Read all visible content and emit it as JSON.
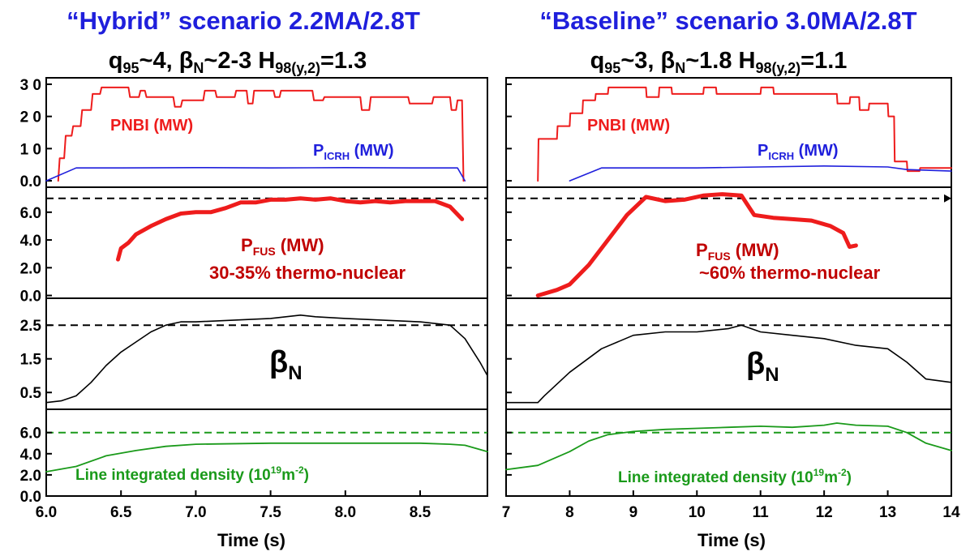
{
  "titles": {
    "left_line1": "“Hybrid” scenario 2.2MA/2.8T",
    "left_line2": "q95~4, βN~2-3 H98(y,2)=1.3",
    "right_line1": "“Baseline” scenario 3.0MA/2.8T",
    "right_line2": "q95~3, βN~1.8 H98(y,2)=1.1"
  },
  "colors": {
    "title_blue": "#1f1fdc",
    "pnbi_red": "#ee1c1c",
    "picrh_blue": "#1f1fdc",
    "pfus_red": "#ee1c1c",
    "pfus_text": "#c00000",
    "beta_black": "#000000",
    "density_green": "#1a9a1a"
  },
  "chart_data": [
    {
      "type": "line",
      "panel": "left",
      "xlabel": "Time (s)",
      "xlim": [
        6.0,
        8.95
      ],
      "xticks": [
        "6.0",
        "6.5",
        "7.0",
        "7.5",
        "8.0",
        "8.5"
      ],
      "grid": false,
      "subplots": [
        {
          "name": "heating",
          "ylim": [
            -2,
            32
          ],
          "yticks": [
            "3 0",
            "2 0",
            "1 0",
            "0.0"
          ],
          "annotations": [
            "PNBI (MW)",
            "PICRH (MW)"
          ],
          "series": [
            {
              "name": "PNBI (MW)",
              "color": "#ee1c1c",
              "x": [
                6.08,
                6.09,
                6.12,
                6.13,
                6.17,
                6.18,
                6.23,
                6.24,
                6.3,
                6.31,
                6.36,
                6.37,
                6.55,
                6.56,
                6.62,
                6.63,
                6.66,
                6.67,
                6.85,
                6.86,
                6.9,
                6.91,
                7.05,
                7.06,
                7.13,
                7.14,
                7.26,
                7.27,
                7.34,
                7.35,
                7.38,
                7.39,
                7.52,
                7.53,
                7.56,
                7.57,
                7.78,
                7.79,
                7.85,
                7.86,
                8.1,
                8.11,
                8.16,
                8.17,
                8.42,
                8.43,
                8.58,
                8.59,
                8.7,
                8.71,
                8.74,
                8.75,
                8.78,
                8.79
              ],
              "y": [
                0,
                7,
                7,
                14,
                14,
                17,
                17,
                22,
                22,
                27,
                27,
                29,
                29,
                26,
                26,
                28,
                28,
                26,
                26,
                23,
                23,
                25,
                25,
                28,
                28,
                26,
                26,
                28,
                28,
                24,
                24,
                28,
                28,
                26,
                26,
                28,
                28,
                25,
                25,
                26,
                26,
                22,
                22,
                26,
                26,
                24,
                24,
                26,
                26,
                22,
                22,
                25,
                25,
                0
              ]
            },
            {
              "name": "PICRH (MW)",
              "color": "#1f1fdc",
              "x": [
                6.0,
                6.2,
                6.5,
                7.0,
                7.5,
                8.0,
                8.5,
                8.75,
                8.8
              ],
              "y": [
                0,
                4,
                4,
                4.1,
                4,
                4.1,
                4,
                4,
                0
              ]
            }
          ]
        },
        {
          "name": "fusion-power",
          "ylim": [
            -0.2,
            7.8
          ],
          "yticks": [
            "6.0",
            "4.0",
            "2.0",
            "0.0"
          ],
          "reference_line": 7.0,
          "annotations": [
            "PFUS (MW)",
            "30-35% thermo-nuclear"
          ],
          "series": [
            {
              "name": "PFUS (MW)",
              "color": "#ee1c1c",
              "x": [
                6.48,
                6.5,
                6.55,
                6.6,
                6.7,
                6.8,
                6.9,
                7.0,
                7.1,
                7.2,
                7.3,
                7.4,
                7.5,
                7.6,
                7.7,
                7.8,
                7.9,
                8.0,
                8.1,
                8.2,
                8.3,
                8.4,
                8.5,
                8.6,
                8.7,
                8.78
              ],
              "y": [
                2.6,
                3.4,
                3.8,
                4.4,
                5.0,
                5.5,
                5.9,
                6.0,
                6.0,
                6.3,
                6.7,
                6.7,
                6.9,
                6.9,
                7.0,
                6.9,
                7.0,
                6.8,
                6.7,
                6.8,
                6.7,
                6.8,
                6.8,
                6.8,
                6.4,
                5.5
              ]
            }
          ]
        },
        {
          "name": "beta-n",
          "ylim": [
            0.0,
            3.3
          ],
          "yticks": [
            "2.5",
            "1.5",
            "0.5"
          ],
          "reference_line": 2.5,
          "annotations": [
            "βN"
          ],
          "series": [
            {
              "name": "βN",
              "color": "#000000",
              "x": [
                6.0,
                6.1,
                6.2,
                6.3,
                6.4,
                6.5,
                6.6,
                6.7,
                6.8,
                6.9,
                7.0,
                7.5,
                7.7,
                7.8,
                8.0,
                8.5,
                8.7,
                8.8,
                8.9,
                8.95
              ],
              "y": [
                0.2,
                0.25,
                0.4,
                0.8,
                1.3,
                1.7,
                2.0,
                2.3,
                2.5,
                2.6,
                2.6,
                2.7,
                2.8,
                2.75,
                2.7,
                2.6,
                2.5,
                2.1,
                1.4,
                1.0
              ]
            }
          ]
        },
        {
          "name": "density",
          "ylim": [
            0.0,
            8.2
          ],
          "yticks": [
            "6.0",
            "4.0",
            "2.0",
            "0.0"
          ],
          "reference_line": 6.0,
          "annotations": [
            "Line integrated density (1019m-2)"
          ],
          "series": [
            {
              "name": "Line integrated density (1019m-2)",
              "color": "#1a9a1a",
              "x": [
                6.0,
                6.2,
                6.4,
                6.6,
                6.8,
                7.0,
                7.5,
                8.0,
                8.5,
                8.7,
                8.8,
                8.9,
                8.95
              ],
              "y": [
                2.3,
                2.8,
                3.8,
                4.3,
                4.7,
                4.9,
                5.0,
                5.0,
                5.0,
                4.9,
                4.8,
                4.4,
                4.2
              ]
            }
          ]
        }
      ]
    },
    {
      "type": "line",
      "panel": "right",
      "xlabel": "Time (s)",
      "xlim": [
        7.0,
        14.0
      ],
      "xticks": [
        "7",
        "8",
        "9",
        "10",
        "11",
        "12",
        "13",
        "14"
      ],
      "grid": false,
      "subplots": [
        {
          "name": "heating",
          "ylim": [
            -2,
            32
          ],
          "annotations": [
            "PNBI (MW)",
            "PICRH (MW)"
          ],
          "series": [
            {
              "name": "PNBI (MW)",
              "color": "#ee1c1c",
              "x": [
                7.5,
                7.51,
                7.8,
                7.81,
                8.0,
                8.01,
                8.2,
                8.21,
                8.4,
                8.41,
                8.6,
                8.61,
                9.2,
                9.21,
                9.4,
                9.41,
                9.6,
                9.61,
                10.1,
                10.11,
                10.3,
                10.31,
                11.0,
                11.01,
                11.2,
                11.21,
                12.2,
                12.21,
                12.4,
                12.41,
                12.55,
                12.56,
                12.7,
                12.71,
                13.0,
                13.01,
                13.1,
                13.11,
                13.3,
                13.31,
                13.5,
                13.51,
                14.0
              ],
              "y": [
                0,
                13,
                13,
                17,
                17,
                21,
                21,
                25,
                25,
                27,
                27,
                29,
                29,
                26,
                26,
                29,
                29,
                27,
                27,
                29,
                29,
                27,
                27,
                29,
                29,
                27,
                27,
                24,
                24,
                26,
                26,
                22,
                22,
                24,
                24,
                20,
                20,
                6,
                6,
                3,
                3,
                4,
                4
              ]
            },
            {
              "name": "PICRH (MW)",
              "color": "#1f1fdc",
              "x": [
                8.0,
                8.5,
                9.0,
                10.0,
                11.0,
                12.0,
                13.0,
                13.3,
                14.0
              ],
              "y": [
                0,
                4,
                4,
                4,
                4.3,
                4.6,
                4.3,
                3.5,
                3.0
              ]
            }
          ]
        },
        {
          "name": "fusion-power",
          "ylim": [
            -0.2,
            7.8
          ],
          "reference_line": 7.0,
          "annotations": [
            "PFUS (MW)",
            "~60% thermo-nuclear"
          ],
          "series": [
            {
              "name": "PFUS (MW)",
              "color": "#ee1c1c",
              "x": [
                7.5,
                7.8,
                8.0,
                8.3,
                8.6,
                8.9,
                9.2,
                9.5,
                9.8,
                10.1,
                10.4,
                10.7,
                10.9,
                11.2,
                11.5,
                11.8,
                12.1,
                12.3,
                12.4,
                12.5
              ],
              "y": [
                0.0,
                0.4,
                0.8,
                2.2,
                4.0,
                5.8,
                7.1,
                6.8,
                6.9,
                7.2,
                7.3,
                7.2,
                5.8,
                5.6,
                5.5,
                5.4,
                5.0,
                4.5,
                3.5,
                3.6
              ]
            }
          ]
        },
        {
          "name": "beta-n",
          "ylim": [
            0.0,
            3.3
          ],
          "reference_line": 2.5,
          "annotations": [
            "βN"
          ],
          "series": [
            {
              "name": "βN",
              "color": "#000000",
              "x": [
                7.0,
                7.5,
                7.6,
                8.0,
                8.5,
                9.0,
                9.5,
                10.0,
                10.5,
                10.7,
                11.0,
                11.5,
                12.0,
                12.5,
                13.0,
                13.3,
                13.6,
                14.0
              ],
              "y": [
                0.2,
                0.2,
                0.4,
                1.1,
                1.8,
                2.2,
                2.3,
                2.3,
                2.4,
                2.5,
                2.3,
                2.2,
                2.1,
                1.9,
                1.8,
                1.4,
                0.9,
                0.8
              ]
            }
          ]
        },
        {
          "name": "density",
          "ylim": [
            0.0,
            8.2
          ],
          "reference_line": 6.0,
          "annotations": [
            "Line integrated density (1019m-2)"
          ],
          "series": [
            {
              "name": "Line integrated density (1019m-2)",
              "color": "#1a9a1a",
              "x": [
                7.0,
                7.5,
                8.0,
                8.3,
                8.6,
                9.0,
                9.5,
                10.0,
                10.5,
                11.0,
                11.5,
                12.0,
                12.2,
                12.5,
                13.0,
                13.3,
                13.6,
                14.0
              ],
              "y": [
                2.5,
                2.9,
                4.2,
                5.2,
                5.8,
                6.1,
                6.3,
                6.4,
                6.5,
                6.6,
                6.5,
                6.7,
                6.9,
                6.7,
                6.6,
                6.0,
                5.0,
                4.3
              ]
            }
          ]
        }
      ]
    }
  ]
}
